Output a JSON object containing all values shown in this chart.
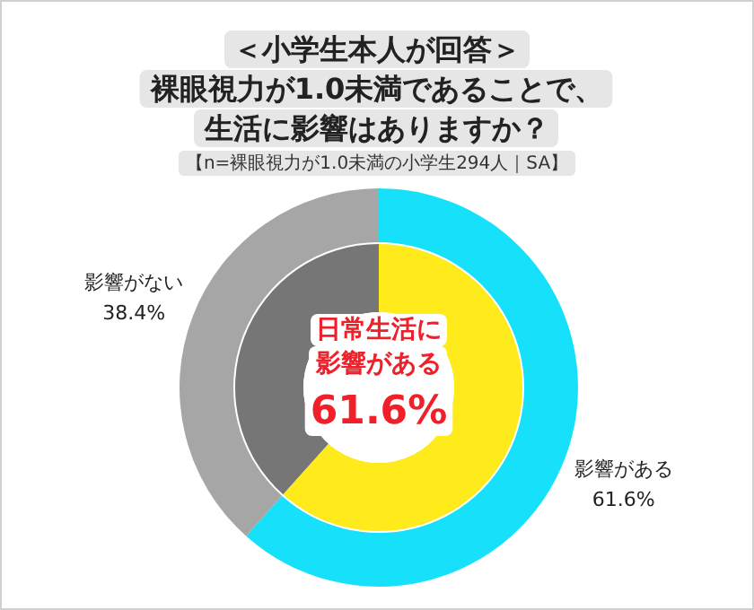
{
  "chart_data": {
    "type": "donut",
    "title": "＜小学生本人が回答＞裸眼視力が1.0未満であることで、生活に影響はありますか？",
    "subtitle": "【n=裸眼視力が1.0未満の小学生294人｜SA】",
    "categories": [
      "影響がある",
      "影響がない"
    ],
    "series": [
      {
        "values": [
          61.6,
          38.4
        ],
        "colors": [
          "#16e0fa",
          "#a6a6a6"
        ],
        "value_labels": [
          "61.6%",
          "38.4%"
        ]
      },
      {
        "values": [
          61.6,
          38.4
        ],
        "colors": [
          "#ffea1c",
          "#767676"
        ]
      }
    ],
    "annotations": [
      "日常生活に影響がある",
      "61.6%"
    ]
  }
}
